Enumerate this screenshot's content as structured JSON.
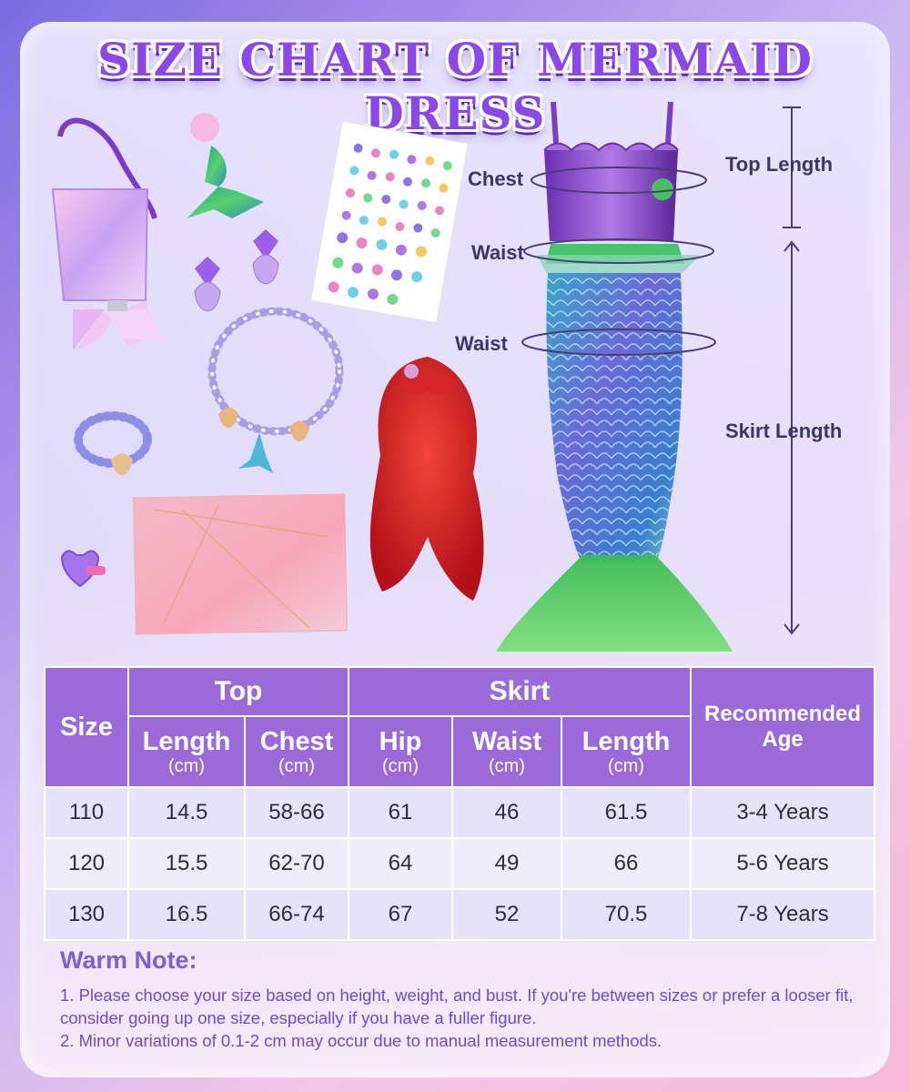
{
  "title": "SIZE CHART OF MERMAID DRESS",
  "labels": {
    "chest": "Chest",
    "waist_top": "Waist",
    "waist_hip": "Waist",
    "top_length": "Top Length",
    "skirt_length": "Skirt Length"
  },
  "table": {
    "size_header": "Size",
    "top_group": "Top",
    "skirt_group": "Skirt",
    "age_header": "Recommended Age",
    "columns": [
      {
        "label": "Length",
        "unit": "(cm)"
      },
      {
        "label": "Chest",
        "unit": "(cm)"
      },
      {
        "label": "Hip",
        "unit": "(cm)"
      },
      {
        "label": "Waist",
        "unit": "(cm)"
      },
      {
        "label": "Length",
        "unit": "(cm)"
      }
    ],
    "rows": [
      {
        "size": "110",
        "top_length": "14.5",
        "chest": "58-66",
        "hip": "61",
        "waist": "46",
        "skirt_length": "61.5",
        "age": "3-4 Years"
      },
      {
        "size": "120",
        "top_length": "15.5",
        "chest": "62-70",
        "hip": "64",
        "waist": "49",
        "skirt_length": "66",
        "age": "5-6 Years"
      },
      {
        "size": "130",
        "top_length": "16.5",
        "chest": "66-74",
        "hip": "67",
        "waist": "52",
        "skirt_length": "70.5",
        "age": "7-8 Years"
      }
    ]
  },
  "note": {
    "title": "Warm Note:",
    "line1": "1. Please choose your size based on height, weight, and bust. If you're between sizes or prefer a looser fit, consider going up one size, especially if you have a fuller figure.",
    "line2": "2. Minor variations of 0.1-2 cm may occur due to manual measurement methods."
  },
  "product_images": [
    "sequin-crossbody-bag",
    "mermaid-tail-hair-clip",
    "gem-sticker-sheet",
    "shell-earrings",
    "pearl-shell-necklace",
    "beaded-bracelet",
    "heart-ring",
    "gift-card",
    "red-wig",
    "mermaid-dress"
  ],
  "colors": {
    "accent": "#9b6ad8",
    "title": "#8b47e8",
    "note": "#7b5fd3"
  }
}
